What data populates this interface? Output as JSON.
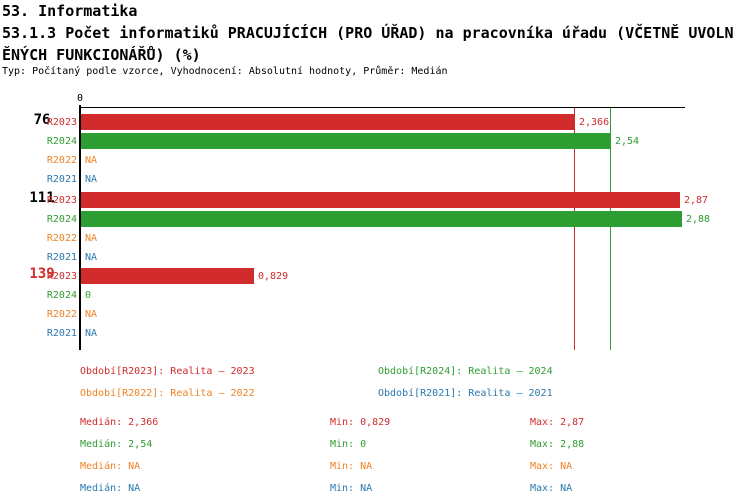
{
  "header": {
    "title": "53. Informatika",
    "subtitle_line1": "53.1.3 Počet informatiků PRACUJÍCÍCH (PRO ÚŘAD) na pracovníka úřadu (VČETNĚ UVOLN",
    "subtitle_line2": "ĚNÝCH FUNKCIONÁŘŮ) (%)",
    "meta": "Typ: Počítaný podle vzorce, Vyhodnocení: Absolutní hodnoty, Průměr: Medián"
  },
  "colors": {
    "R2023": "#d12b2b",
    "R2024": "#2e9e32",
    "R2022": "#f08223",
    "R2021": "#2b78af",
    "axis": "#000000",
    "group_label": "#000000",
    "group_label_highlight": "#d12b2b"
  },
  "chart_data": {
    "type": "bar",
    "orientation": "horizontal",
    "value_axis": {
      "min": 0,
      "max": 2.9,
      "zero_tick_label": "0"
    },
    "series_order": [
      "R2023",
      "R2024",
      "R2022",
      "R2021"
    ],
    "groups": [
      {
        "label": "76",
        "highlight": false,
        "values": {
          "R2023": 2.366,
          "R2024": 2.54,
          "R2022": null,
          "R2021": null
        },
        "displays": {
          "R2023": "2,366",
          "R2024": "2,54",
          "R2022": "NA",
          "R2021": "NA"
        }
      },
      {
        "label": "111",
        "highlight": false,
        "values": {
          "R2023": 2.87,
          "R2024": 2.88,
          "R2022": null,
          "R2021": null
        },
        "displays": {
          "R2023": "2,87",
          "R2024": "2,88",
          "R2022": "NA",
          "R2021": "NA"
        }
      },
      {
        "label": "139",
        "highlight": true,
        "values": {
          "R2023": 0.829,
          "R2024": 0,
          "R2022": null,
          "R2021": null
        },
        "displays": {
          "R2023": "0,829",
          "R2024": "0",
          "R2022": "NA",
          "R2021": "NA"
        }
      }
    ],
    "median_lines": [
      {
        "series": "R2023",
        "value": 2.366
      },
      {
        "series": "R2024",
        "value": 2.54
      }
    ]
  },
  "legend": {
    "items": [
      {
        "series": "R2023",
        "label": "Období[R2023]: Realita – 2023"
      },
      {
        "series": "R2024",
        "label": "Období[R2024]: Realita – 2024"
      },
      {
        "series": "R2022",
        "label": "Období[R2022]: Realita – 2022"
      },
      {
        "series": "R2021",
        "label": "Období[R2021]: Realita – 2021"
      }
    ]
  },
  "stats": {
    "rows": [
      {
        "series": "R2023",
        "median": "Medián: 2,366",
        "min": "Min: 0,829",
        "max": "Max: 2,87"
      },
      {
        "series": "R2024",
        "median": "Medián: 2,54",
        "min": "Min: 0",
        "max": "Max: 2,88"
      },
      {
        "series": "R2022",
        "median": "Medián: NA",
        "min": "Min: NA",
        "max": "Max: NA"
      },
      {
        "series": "R2021",
        "median": "Medián: NA",
        "min": "Min: NA",
        "max": "Max: NA"
      }
    ]
  }
}
